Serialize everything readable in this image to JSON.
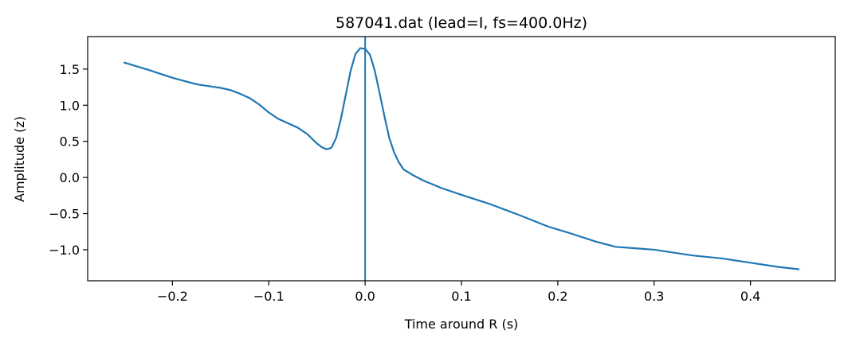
{
  "chart_data": {
    "type": "line",
    "title": "587041.dat (lead=I, fs=400.0Hz)",
    "xlabel": "Time around R (s)",
    "ylabel": "Amplitude (z)",
    "xlim": [
      -0.288,
      0.488
    ],
    "ylim": [
      -1.43,
      1.95
    ],
    "x_ticks": [
      -0.2,
      -0.1,
      0.0,
      0.1,
      0.2,
      0.3,
      0.4
    ],
    "x_tick_labels": [
      "−0.2",
      "−0.1",
      "0.0",
      "0.1",
      "0.2",
      "0.3",
      "0.4"
    ],
    "y_ticks": [
      1.5,
      1.0,
      0.5,
      0.0,
      -0.5,
      -1.0
    ],
    "y_tick_labels": [
      "1.5",
      "1.0",
      "0.5",
      "0.0",
      "−0.5",
      "−1.0"
    ],
    "grid": false,
    "line_color": "#1f77b4",
    "vline_x": 0.0,
    "series": [
      {
        "x": [
          -0.25,
          -0.225,
          -0.2,
          -0.175,
          -0.15,
          -0.14,
          -0.13,
          -0.12,
          -0.11,
          -0.1,
          -0.09,
          -0.08,
          -0.07,
          -0.06,
          -0.05,
          -0.045,
          -0.04,
          -0.035,
          -0.03,
          -0.025,
          -0.02,
          -0.015,
          -0.01,
          -0.005,
          0.0,
          0.005,
          0.01,
          0.015,
          0.02,
          0.025,
          0.03,
          0.035,
          0.04,
          0.05,
          0.06,
          0.08,
          0.1,
          0.13,
          0.16,
          0.19,
          0.21,
          0.24,
          0.26,
          0.28,
          0.3,
          0.34,
          0.37,
          0.4,
          0.43,
          0.45
        ],
        "y": [
          1.59,
          1.49,
          1.38,
          1.29,
          1.24,
          1.21,
          1.16,
          1.1,
          1.01,
          0.9,
          0.81,
          0.75,
          0.69,
          0.6,
          0.47,
          0.42,
          0.39,
          0.41,
          0.55,
          0.82,
          1.15,
          1.48,
          1.71,
          1.79,
          1.78,
          1.7,
          1.48,
          1.17,
          0.85,
          0.55,
          0.35,
          0.21,
          0.11,
          0.03,
          -0.04,
          -0.15,
          -0.24,
          -0.37,
          -0.52,
          -0.68,
          -0.76,
          -0.89,
          -0.96,
          -0.98,
          -1.0,
          -1.08,
          -1.12,
          -1.18,
          -1.24,
          -1.27
        ]
      }
    ]
  }
}
